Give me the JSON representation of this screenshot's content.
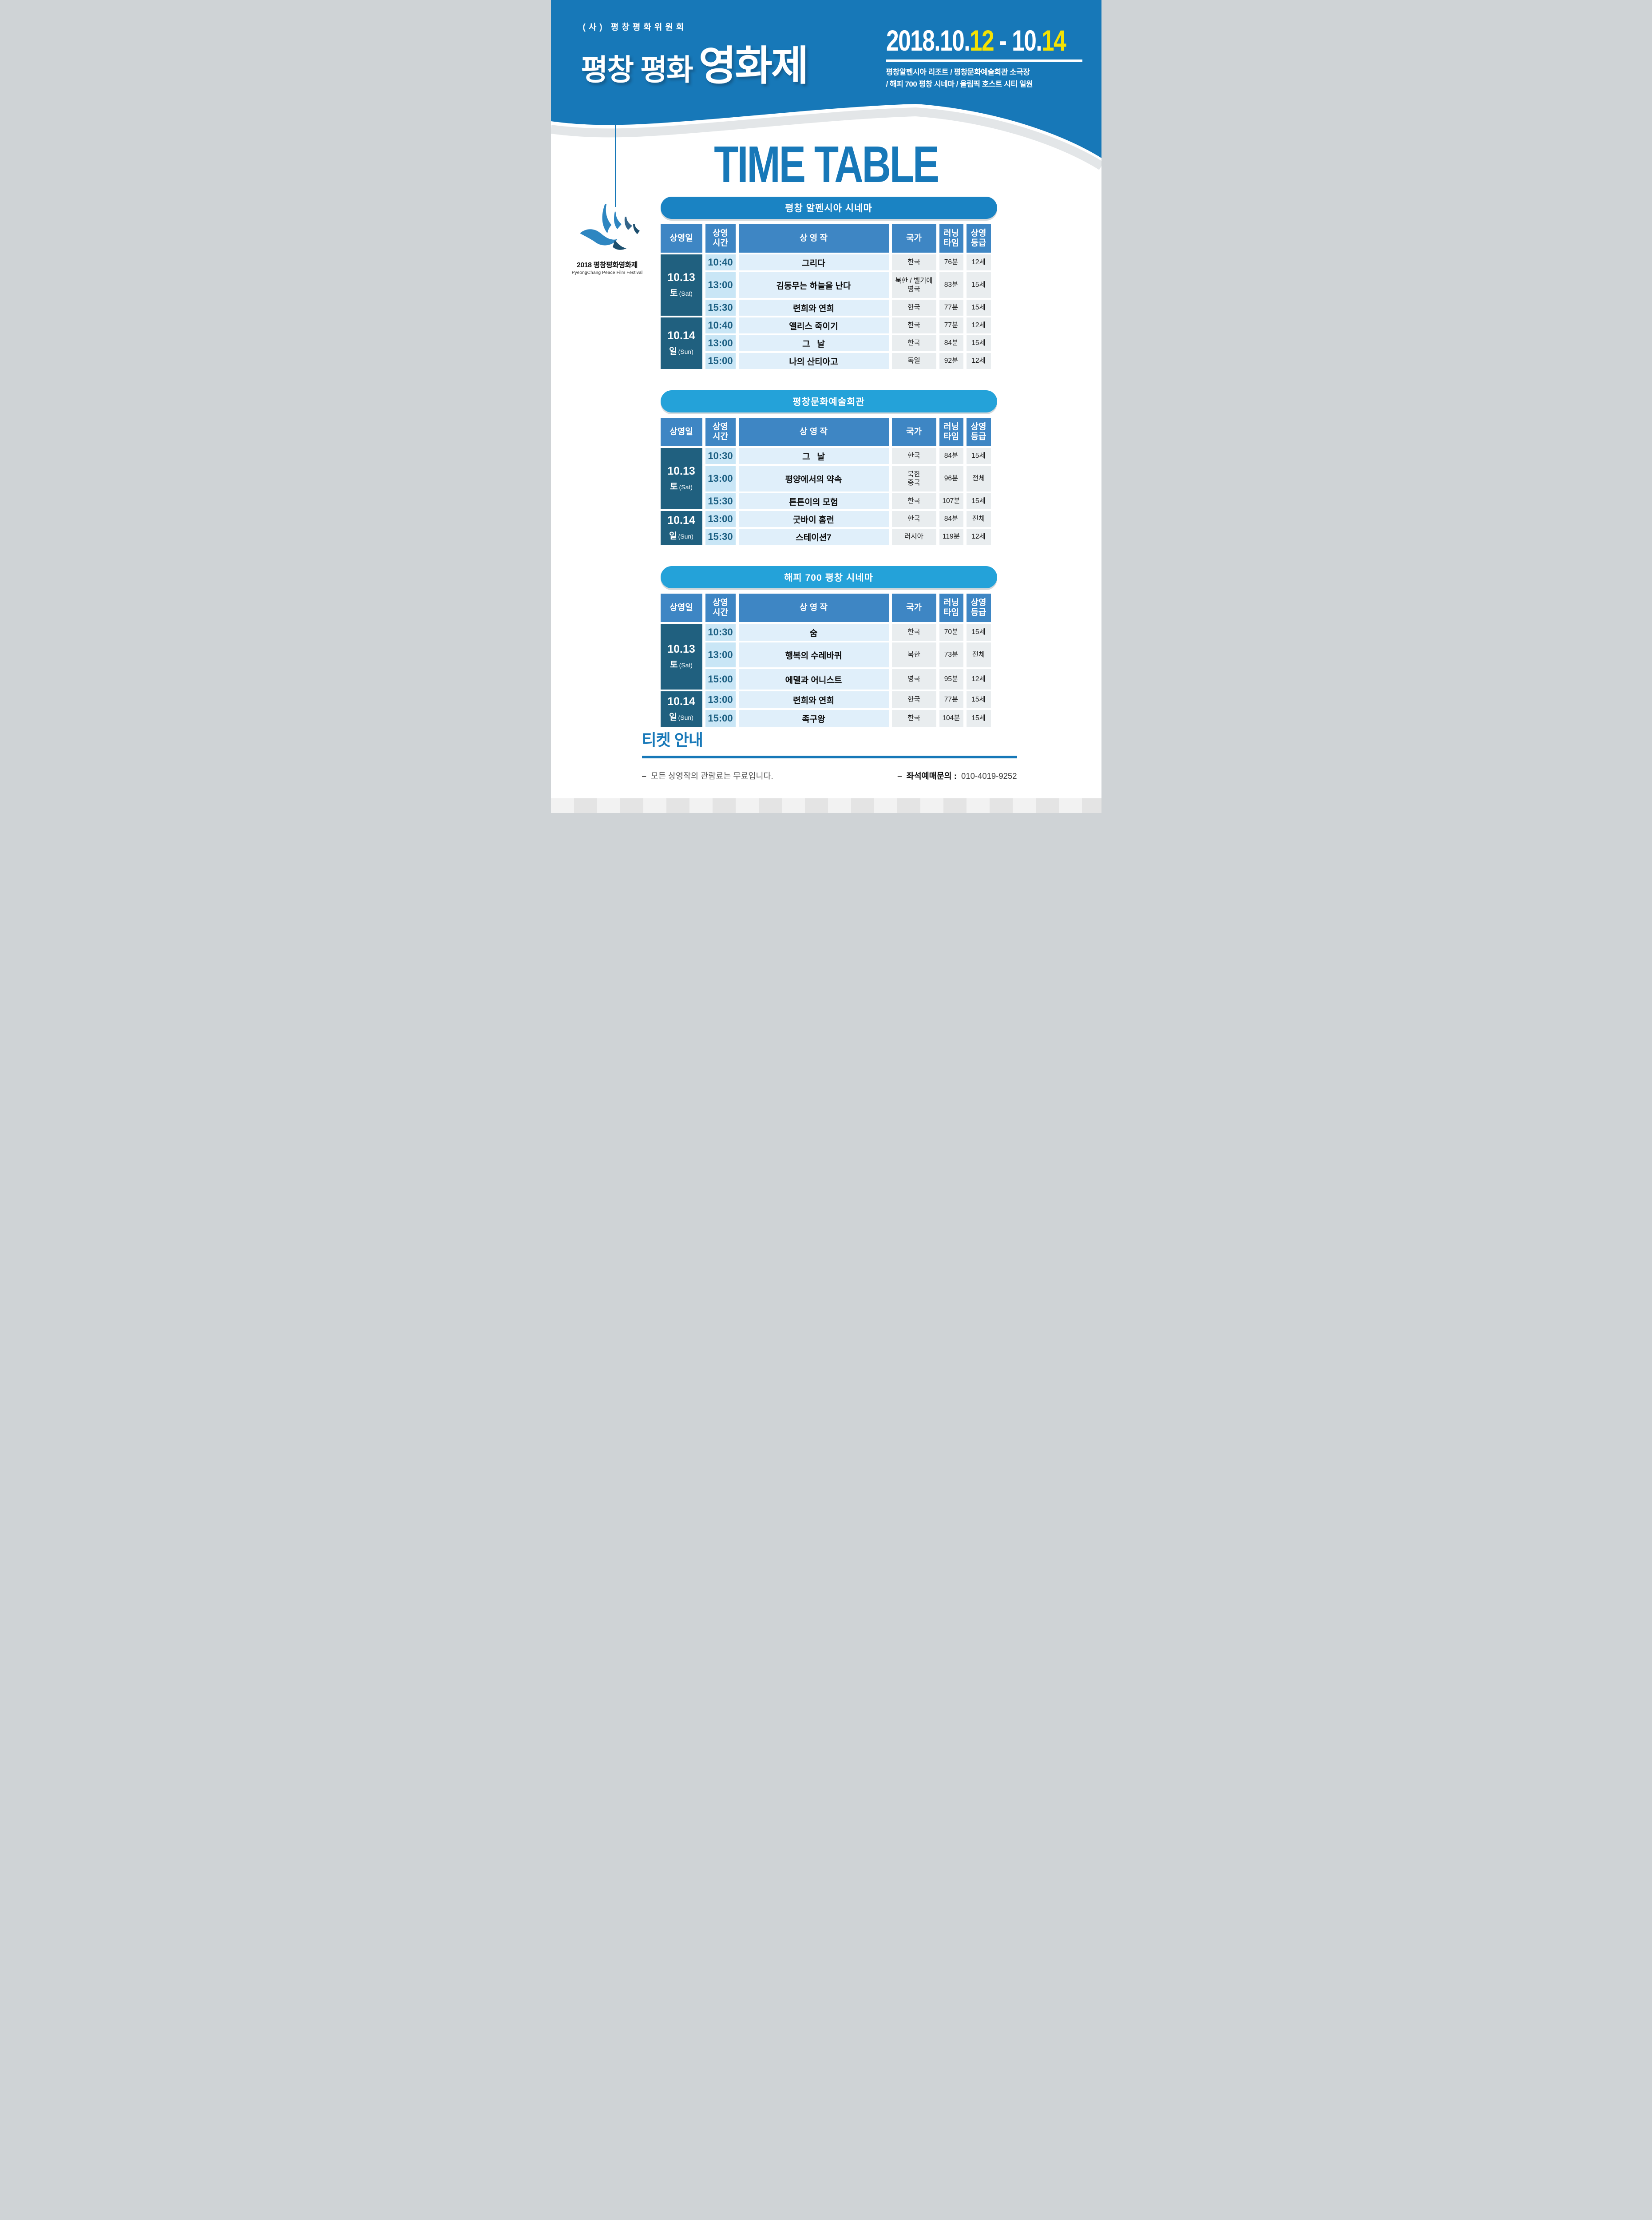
{
  "header": {
    "org": "(사) 평창평화위원회",
    "title_main": "평창 평화",
    "title_accent": "영화제",
    "date_segments": [
      {
        "text": "2018.10.",
        "color": "white"
      },
      {
        "text": "12",
        "color": "yellow"
      },
      {
        "text": " - 10.",
        "color": "white"
      },
      {
        "text": "14",
        "color": "yellow"
      }
    ],
    "venues_line1": "평창알펜시아 리조트 / 평창문화예술회관 소극장",
    "venues_line2": "/ 해피 700 평창 시네마 / 올림픽 호스트 시티 일원"
  },
  "page_title": "TIME TABLE",
  "logo": {
    "name_line": "2018 평창평화영화제",
    "name_sub": "PyeongChang Peace Film Festival"
  },
  "table_columns": [
    {
      "label": "상영일"
    },
    {
      "label": "상영\n시간"
    },
    {
      "label": "상 영 작"
    },
    {
      "label": "국가"
    },
    {
      "label": "러닝\n타임"
    },
    {
      "label": "상영\n등급"
    }
  ],
  "sections": [
    {
      "title": "평창 알펜시아 시네마",
      "rows": [
        {
          "date": {
            "day": "10.13",
            "dow": "토",
            "dow_en": "(Sat)",
            "span": 3
          },
          "time": "10:40",
          "film": "그리다",
          "country": "한국",
          "runtime": "76분",
          "rating": "12세"
        },
        {
          "time": "13:00",
          "film": "김동무는 하늘을 난다",
          "country": "북한 / 벨기에\n영국",
          "runtime": "83분",
          "rating": "15세"
        },
        {
          "time": "15:30",
          "film": "련희와 연희",
          "country": "한국",
          "runtime": "77분",
          "rating": "15세"
        },
        {
          "date": {
            "day": "10.14",
            "dow": "일",
            "dow_en": "(Sun)",
            "span": 3
          },
          "time": "10:40",
          "film": "앨리스 죽이기",
          "country": "한국",
          "runtime": "77분",
          "rating": "12세"
        },
        {
          "time": "13:00",
          "film": "그   날",
          "country": "한국",
          "runtime": "84분",
          "rating": "15세"
        },
        {
          "time": "15:00",
          "film": "나의 산티아고",
          "country": "독일",
          "runtime": "92분",
          "rating": "12세"
        }
      ]
    },
    {
      "title": "평창문화예술회관",
      "rows": [
        {
          "date": {
            "day": "10.13",
            "dow": "토",
            "dow_en": "(Sat)",
            "span": 3
          },
          "time": "10:30",
          "film": "그   날",
          "country": "한국",
          "runtime": "84분",
          "rating": "15세"
        },
        {
          "time": "13:00",
          "film": "평양에서의 약속",
          "country": "북한\n중국",
          "runtime": "96분",
          "rating": "전체"
        },
        {
          "time": "15:30",
          "film": "튼튼이의 모험",
          "country": "한국",
          "runtime": "107분",
          "rating": "15세"
        },
        {
          "date": {
            "day": "10.14",
            "dow": "일",
            "dow_en": "(Sun)",
            "span": 2
          },
          "time": "13:00",
          "film": "굿바이 홈런",
          "country": "한국",
          "runtime": "84분",
          "rating": "전체"
        },
        {
          "time": "15:30",
          "film": "스테이션7",
          "country": "러시아",
          "runtime": "119분",
          "rating": "12세"
        }
      ]
    },
    {
      "title": "해피 700 평창 시네마",
      "rows": [
        {
          "date": {
            "day": "10.13",
            "dow": "토",
            "dow_en": "(Sat)",
            "span": 3
          },
          "time": "10:30",
          "film": "숨",
          "country": "한국",
          "runtime": "70분",
          "rating": "15세"
        },
        {
          "time": "13:00",
          "film": "행복의 수레바퀴",
          "country": "북한",
          "runtime": "73분",
          "rating": "전체"
        },
        {
          "time": "15:00",
          "film": "에델과 어니스트",
          "country": "영국",
          "runtime": "95분",
          "rating": "12세"
        },
        {
          "date": {
            "day": "10.14",
            "dow": "일",
            "dow_en": "(Sun)",
            "span": 2
          },
          "time": "13:00",
          "film": "련희와 연희",
          "country": "한국",
          "runtime": "77분",
          "rating": "15세"
        },
        {
          "time": "15:00",
          "film": "족구왕",
          "country": "한국",
          "runtime": "104분",
          "rating": "15세"
        }
      ]
    }
  ],
  "footer": {
    "heading": "티켓 안내",
    "bullet": "–",
    "note": "모든 상영작의 관람료는 무료입니다.",
    "contact_label": "좌석예매문의 :",
    "contact_number": "010-4019-9252"
  },
  "colors": {
    "header_blue": "#1778b8",
    "pill_blue_dark": "#1a83c3",
    "pill_blue_light": "#24a2d9",
    "table_header_blue": "#3e86c4",
    "date_cell_blue": "#20607f",
    "time_cell_bg": "#c9e6f6",
    "film_cell_bg": "#e0effa",
    "info_cell_bg": "#e9edef",
    "accent_yellow": "#f5e203",
    "wave_gray": "#e3e6e8"
  }
}
